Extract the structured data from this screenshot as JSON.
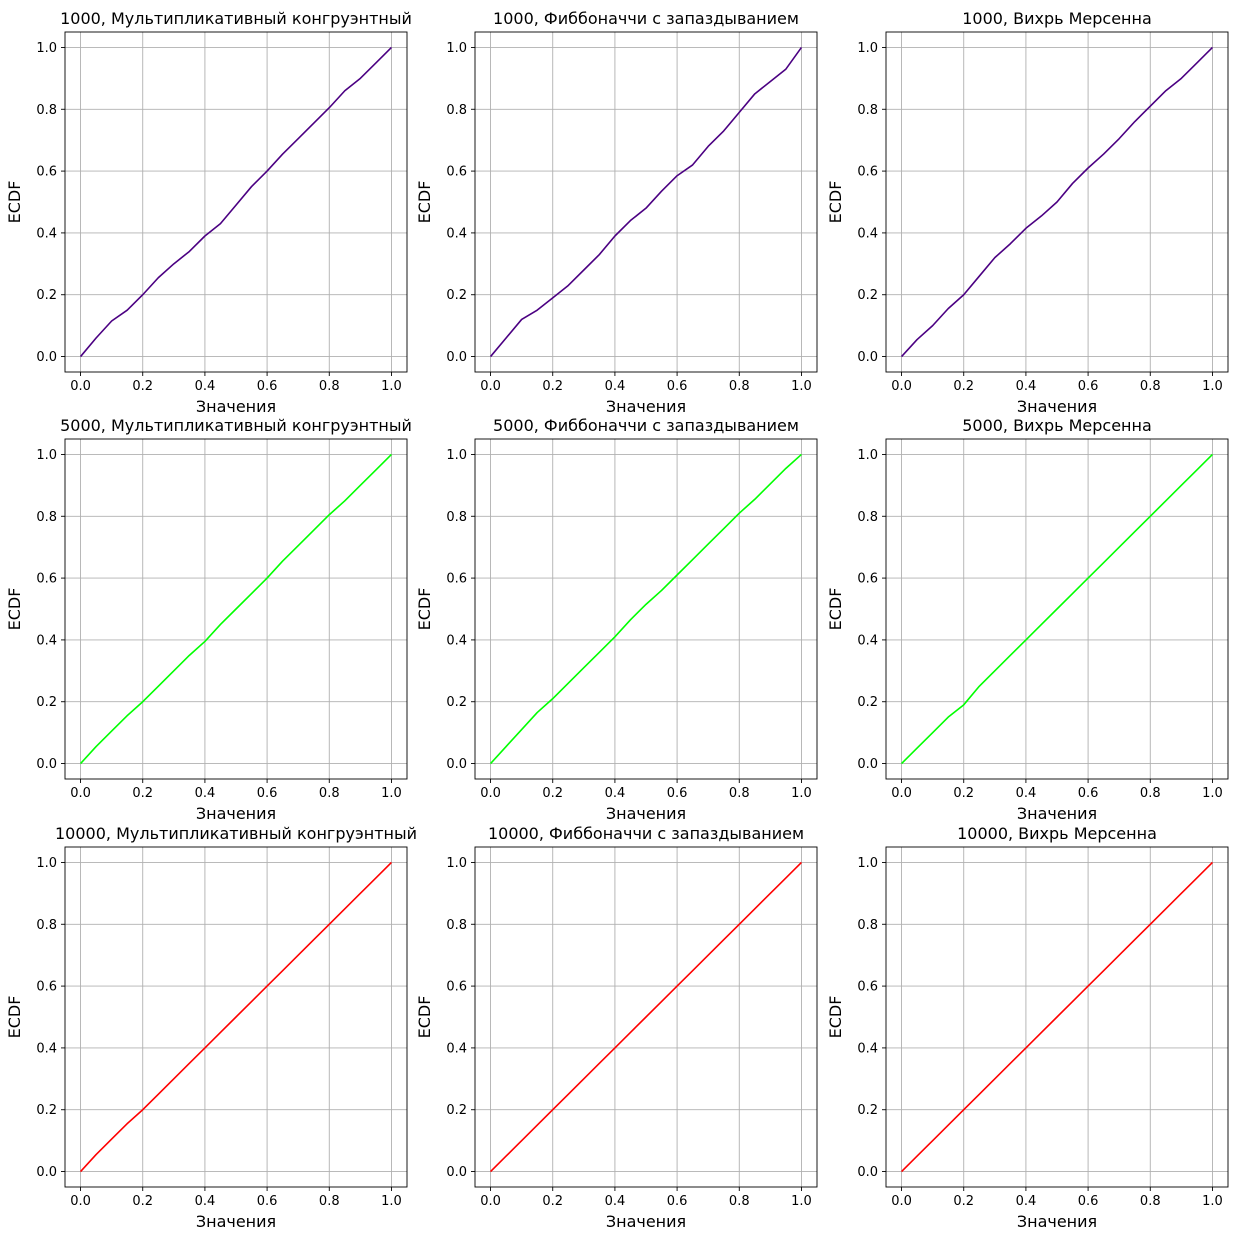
{
  "figure": {
    "background": "#ffffff",
    "grid_color": "#b0b0b0",
    "axis_color": "#000000",
    "grid": true
  },
  "chart_data": [
    {
      "type": "line",
      "title": "1000, Мультипликативный конгруэнтный",
      "xlabel": "Значения",
      "ylabel": "ECDF",
      "xlim": [
        -0.05,
        1.05
      ],
      "ylim": [
        -0.05,
        1.05
      ],
      "xticks": [
        "0.0",
        "0.2",
        "0.4",
        "0.6",
        "0.8",
        "1.0"
      ],
      "yticks": [
        "0.0",
        "0.2",
        "0.4",
        "0.6",
        "0.8",
        "1.0"
      ],
      "color": "#4b0082",
      "grid": true,
      "series": [
        {
          "x": [
            0,
            0.05,
            0.1,
            0.15,
            0.2,
            0.25,
            0.3,
            0.35,
            0.4,
            0.45,
            0.5,
            0.55,
            0.6,
            0.65,
            0.7,
            0.75,
            0.8,
            0.85,
            0.9,
            0.95,
            1
          ],
          "values": [
            0,
            0.06,
            0.115,
            0.15,
            0.2,
            0.255,
            0.3,
            0.34,
            0.39,
            0.43,
            0.49,
            0.55,
            0.6,
            0.655,
            0.705,
            0.755,
            0.805,
            0.86,
            0.9,
            0.95,
            1
          ]
        }
      ]
    },
    {
      "type": "line",
      "title": "1000, Фиббоначчи с запаздыванием",
      "xlabel": "Значения",
      "ylabel": "ECDF",
      "xlim": [
        -0.05,
        1.05
      ],
      "ylim": [
        -0.05,
        1.05
      ],
      "xticks": [
        "0.0",
        "0.2",
        "0.4",
        "0.6",
        "0.8",
        "1.0"
      ],
      "yticks": [
        "0.0",
        "0.2",
        "0.4",
        "0.6",
        "0.8",
        "1.0"
      ],
      "color": "#4b0082",
      "grid": true,
      "series": [
        {
          "x": [
            0,
            0.05,
            0.1,
            0.15,
            0.2,
            0.25,
            0.3,
            0.35,
            0.4,
            0.45,
            0.5,
            0.55,
            0.6,
            0.65,
            0.7,
            0.75,
            0.8,
            0.85,
            0.9,
            0.95,
            1
          ],
          "values": [
            0,
            0.06,
            0.12,
            0.15,
            0.19,
            0.23,
            0.28,
            0.33,
            0.39,
            0.44,
            0.48,
            0.535,
            0.585,
            0.62,
            0.68,
            0.73,
            0.79,
            0.85,
            0.89,
            0.93,
            1
          ]
        }
      ]
    },
    {
      "type": "line",
      "title": "1000, Вихрь Мерсенна",
      "xlabel": "Значения",
      "ylabel": "ECDF",
      "xlim": [
        -0.05,
        1.05
      ],
      "ylim": [
        -0.05,
        1.05
      ],
      "xticks": [
        "0.0",
        "0.2",
        "0.4",
        "0.6",
        "0.8",
        "1.0"
      ],
      "yticks": [
        "0.0",
        "0.2",
        "0.4",
        "0.6",
        "0.8",
        "1.0"
      ],
      "color": "#4b0082",
      "grid": true,
      "series": [
        {
          "x": [
            0,
            0.05,
            0.1,
            0.15,
            0.2,
            0.25,
            0.3,
            0.35,
            0.4,
            0.45,
            0.5,
            0.55,
            0.6,
            0.65,
            0.7,
            0.75,
            0.8,
            0.85,
            0.9,
            0.95,
            1
          ],
          "values": [
            0,
            0.055,
            0.1,
            0.155,
            0.2,
            0.26,
            0.32,
            0.365,
            0.415,
            0.455,
            0.5,
            0.56,
            0.61,
            0.655,
            0.705,
            0.76,
            0.81,
            0.86,
            0.9,
            0.95,
            1
          ]
        }
      ]
    },
    {
      "type": "line",
      "title": "5000, Мультипликативный конгруэнтный",
      "xlabel": "Значения",
      "ylabel": "ECDF",
      "xlim": [
        -0.05,
        1.05
      ],
      "ylim": [
        -0.05,
        1.05
      ],
      "xticks": [
        "0.0",
        "0.2",
        "0.4",
        "0.6",
        "0.8",
        "1.0"
      ],
      "yticks": [
        "0.0",
        "0.2",
        "0.4",
        "0.6",
        "0.8",
        "1.0"
      ],
      "color": "#00ff00",
      "grid": true,
      "series": [
        {
          "x": [
            0,
            0.05,
            0.1,
            0.15,
            0.2,
            0.25,
            0.3,
            0.35,
            0.4,
            0.45,
            0.5,
            0.55,
            0.6,
            0.65,
            0.7,
            0.75,
            0.8,
            0.85,
            0.9,
            0.95,
            1
          ],
          "values": [
            0,
            0.055,
            0.105,
            0.155,
            0.2,
            0.25,
            0.3,
            0.35,
            0.395,
            0.45,
            0.5,
            0.55,
            0.6,
            0.655,
            0.705,
            0.755,
            0.805,
            0.85,
            0.9,
            0.95,
            1
          ]
        }
      ]
    },
    {
      "type": "line",
      "title": "5000, Фиббоначчи с запаздыванием",
      "xlabel": "Значения",
      "ylabel": "ECDF",
      "xlim": [
        -0.05,
        1.05
      ],
      "ylim": [
        -0.05,
        1.05
      ],
      "xticks": [
        "0.0",
        "0.2",
        "0.4",
        "0.6",
        "0.8",
        "1.0"
      ],
      "yticks": [
        "0.0",
        "0.2",
        "0.4",
        "0.6",
        "0.8",
        "1.0"
      ],
      "color": "#00ff00",
      "grid": true,
      "series": [
        {
          "x": [
            0,
            0.05,
            0.1,
            0.15,
            0.2,
            0.25,
            0.3,
            0.35,
            0.4,
            0.45,
            0.5,
            0.55,
            0.6,
            0.65,
            0.7,
            0.75,
            0.8,
            0.85,
            0.9,
            0.95,
            1
          ],
          "values": [
            0,
            0.055,
            0.11,
            0.165,
            0.21,
            0.26,
            0.31,
            0.36,
            0.41,
            0.465,
            0.515,
            0.56,
            0.61,
            0.66,
            0.71,
            0.76,
            0.81,
            0.855,
            0.905,
            0.955,
            1
          ]
        }
      ]
    },
    {
      "type": "line",
      "title": "5000, Вихрь Мерсенна",
      "xlabel": "Значения",
      "ylabel": "ECDF",
      "xlim": [
        -0.05,
        1.05
      ],
      "ylim": [
        -0.05,
        1.05
      ],
      "xticks": [
        "0.0",
        "0.2",
        "0.4",
        "0.6",
        "0.8",
        "1.0"
      ],
      "yticks": [
        "0.0",
        "0.2",
        "0.4",
        "0.6",
        "0.8",
        "1.0"
      ],
      "color": "#00ff00",
      "grid": true,
      "series": [
        {
          "x": [
            0,
            0.05,
            0.1,
            0.15,
            0.2,
            0.25,
            0.3,
            0.35,
            0.4,
            0.45,
            0.5,
            0.55,
            0.6,
            0.65,
            0.7,
            0.75,
            0.8,
            0.85,
            0.9,
            0.95,
            1
          ],
          "values": [
            0,
            0.05,
            0.1,
            0.15,
            0.19,
            0.25,
            0.3,
            0.35,
            0.4,
            0.45,
            0.5,
            0.55,
            0.6,
            0.65,
            0.7,
            0.75,
            0.8,
            0.85,
            0.9,
            0.95,
            1
          ]
        }
      ]
    },
    {
      "type": "line",
      "title": "10000, Мультипликативный конгруэнтный",
      "xlabel": "Значения",
      "ylabel": "ECDF",
      "xlim": [
        -0.05,
        1.05
      ],
      "ylim": [
        -0.05,
        1.05
      ],
      "xticks": [
        "0.0",
        "0.2",
        "0.4",
        "0.6",
        "0.8",
        "1.0"
      ],
      "yticks": [
        "0.0",
        "0.2",
        "0.4",
        "0.6",
        "0.8",
        "1.0"
      ],
      "color": "#ff0000",
      "grid": true,
      "series": [
        {
          "x": [
            0,
            0.05,
            0.1,
            0.15,
            0.2,
            0.25,
            0.3,
            0.35,
            0.4,
            0.45,
            0.5,
            0.55,
            0.6,
            0.65,
            0.7,
            0.75,
            0.8,
            0.85,
            0.9,
            0.95,
            1
          ],
          "values": [
            0,
            0.055,
            0.105,
            0.155,
            0.2,
            0.25,
            0.3,
            0.35,
            0.4,
            0.45,
            0.5,
            0.55,
            0.6,
            0.65,
            0.7,
            0.75,
            0.8,
            0.85,
            0.9,
            0.95,
            1
          ]
        }
      ]
    },
    {
      "type": "line",
      "title": "10000, Фиббоначчи с запаздыванием",
      "xlabel": "Значения",
      "ylabel": "ECDF",
      "xlim": [
        -0.05,
        1.05
      ],
      "ylim": [
        -0.05,
        1.05
      ],
      "xticks": [
        "0.0",
        "0.2",
        "0.4",
        "0.6",
        "0.8",
        "1.0"
      ],
      "yticks": [
        "0.0",
        "0.2",
        "0.4",
        "0.6",
        "0.8",
        "1.0"
      ],
      "color": "#ff0000",
      "grid": true,
      "series": [
        {
          "x": [
            0,
            0.05,
            0.1,
            0.15,
            0.2,
            0.25,
            0.3,
            0.35,
            0.4,
            0.45,
            0.5,
            0.55,
            0.6,
            0.65,
            0.7,
            0.75,
            0.8,
            0.85,
            0.9,
            0.95,
            1
          ],
          "values": [
            0,
            0.05,
            0.1,
            0.15,
            0.2,
            0.25,
            0.3,
            0.35,
            0.4,
            0.45,
            0.5,
            0.55,
            0.6,
            0.65,
            0.7,
            0.75,
            0.8,
            0.85,
            0.9,
            0.95,
            1
          ]
        }
      ]
    },
    {
      "type": "line",
      "title": "10000, Вихрь Мерсенна",
      "xlabel": "Значения",
      "ylabel": "ECDF",
      "xlim": [
        -0.05,
        1.05
      ],
      "ylim": [
        -0.05,
        1.05
      ],
      "xticks": [
        "0.0",
        "0.2",
        "0.4",
        "0.6",
        "0.8",
        "1.0"
      ],
      "yticks": [
        "0.0",
        "0.2",
        "0.4",
        "0.6",
        "0.8",
        "1.0"
      ],
      "color": "#ff0000",
      "grid": true,
      "series": [
        {
          "x": [
            0,
            0.05,
            0.1,
            0.15,
            0.2,
            0.25,
            0.3,
            0.35,
            0.4,
            0.45,
            0.5,
            0.55,
            0.6,
            0.65,
            0.7,
            0.75,
            0.8,
            0.85,
            0.9,
            0.95,
            1
          ],
          "values": [
            0,
            0.05,
            0.1,
            0.15,
            0.2,
            0.25,
            0.3,
            0.35,
            0.4,
            0.45,
            0.5,
            0.55,
            0.6,
            0.65,
            0.7,
            0.75,
            0.8,
            0.85,
            0.9,
            0.95,
            1
          ]
        }
      ]
    }
  ]
}
